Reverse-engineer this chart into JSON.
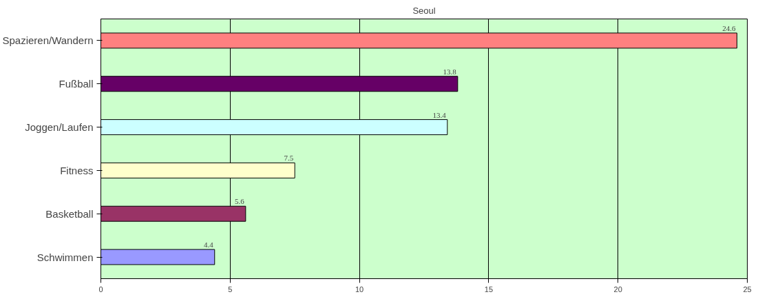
{
  "chart_data": {
    "type": "bar",
    "title": "Seoul",
    "orientation": "horizontal",
    "categories": [
      "Spazieren/Wandern",
      "Fußball",
      "Joggen/Laufen",
      "Fitness",
      "Basketball",
      "Schwimmen"
    ],
    "values": [
      24.6,
      13.8,
      13.4,
      7.5,
      5.6,
      4.4
    ],
    "colors": [
      "#ff8080",
      "#660066",
      "#ccffff",
      "#ffffcc",
      "#993366",
      "#9999ff"
    ],
    "xlim": [
      0,
      25
    ],
    "xticks": [
      0,
      5,
      10,
      15,
      20,
      25
    ],
    "grid": "x",
    "data_labels": true
  }
}
